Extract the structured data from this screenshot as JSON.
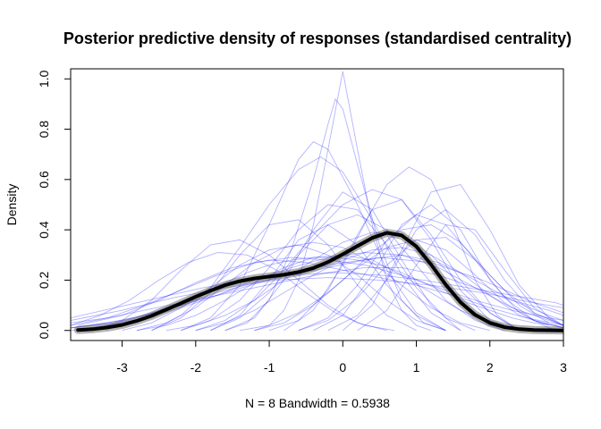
{
  "chart_data": {
    "type": "line",
    "title": "Posterior predictive density of responses (standardised centrality)",
    "xlabel": "N = 8   Bandwidth = 0.5938",
    "ylabel": "Density",
    "xlim": [
      -3.7,
      3.0
    ],
    "ylim": [
      -0.04,
      1.04
    ],
    "x_ticks": [
      -3,
      -2,
      -1,
      0,
      1,
      2,
      3
    ],
    "y_ticks": [
      0.0,
      0.2,
      0.4,
      0.6,
      0.8,
      1.0
    ],
    "x_tick_labels": [
      "-3",
      "-2",
      "-1",
      "0",
      "1",
      "2",
      "3"
    ],
    "y_tick_labels": [
      "0.0",
      "0.2",
      "0.4",
      "0.6",
      "0.8",
      "1.0"
    ],
    "grid": false,
    "colors": {
      "posterior_draws": "#0000FF",
      "observed": "#000000",
      "observed_band": "#555555"
    },
    "series": [
      {
        "role": "observed-density",
        "x": [
          -3.6,
          -3.4,
          -3.2,
          -3.0,
          -2.8,
          -2.6,
          -2.4,
          -2.2,
          -2.0,
          -1.8,
          -1.6,
          -1.4,
          -1.2,
          -1.0,
          -0.8,
          -0.6,
          -0.4,
          -0.2,
          0.0,
          0.2,
          0.4,
          0.6,
          0.8,
          1.0,
          1.2,
          1.4,
          1.6,
          1.8,
          2.0,
          2.2,
          2.4,
          2.6,
          2.8,
          3.0
        ],
        "y": [
          0.002,
          0.005,
          0.012,
          0.022,
          0.038,
          0.058,
          0.083,
          0.108,
          0.134,
          0.158,
          0.18,
          0.196,
          0.207,
          0.214,
          0.222,
          0.232,
          0.248,
          0.272,
          0.303,
          0.336,
          0.368,
          0.388,
          0.378,
          0.334,
          0.262,
          0.182,
          0.112,
          0.062,
          0.03,
          0.013,
          0.005,
          0.002,
          0.001,
          0.0
        ]
      }
    ],
    "posterior_draws": [
      {
        "x": [
          -3.7,
          -3.4,
          -3.1,
          -2.8,
          -2.5,
          -2.2,
          -1.9,
          -1.6,
          -1.3,
          -1.0,
          -0.7,
          -0.4,
          -0.1,
          0.2,
          0.5,
          0.8,
          1.1,
          1.4,
          1.7,
          2.0,
          2.3,
          2.6,
          2.9,
          3.0
        ],
        "y": [
          0.01,
          0.02,
          0.03,
          0.05,
          0.08,
          0.11,
          0.15,
          0.19,
          0.23,
          0.26,
          0.28,
          0.29,
          0.29,
          0.28,
          0.26,
          0.23,
          0.19,
          0.15,
          0.11,
          0.08,
          0.05,
          0.03,
          0.02,
          0.01
        ]
      },
      {
        "x": [
          -1.2,
          -1.0,
          -0.8,
          -0.6,
          -0.4,
          -0.2,
          0.0,
          0.2,
          0.4,
          0.6,
          0.8,
          1.0,
          1.2
        ],
        "y": [
          0.0,
          0.02,
          0.08,
          0.2,
          0.42,
          0.72,
          1.03,
          0.72,
          0.42,
          0.2,
          0.08,
          0.02,
          0.0
        ]
      },
      {
        "x": [
          -1.6,
          -1.3,
          -1.0,
          -0.7,
          -0.4,
          -0.2,
          -0.1,
          0.0,
          0.2,
          0.5,
          0.8,
          1.1,
          1.4
        ],
        "y": [
          0.0,
          0.03,
          0.12,
          0.32,
          0.6,
          0.82,
          0.92,
          0.88,
          0.66,
          0.34,
          0.12,
          0.03,
          0.0
        ]
      },
      {
        "x": [
          -2.2,
          -1.8,
          -1.4,
          -1.0,
          -0.6,
          -0.4,
          -0.2,
          0.2,
          0.6,
          1.0,
          1.4
        ],
        "y": [
          0.0,
          0.05,
          0.18,
          0.42,
          0.68,
          0.75,
          0.72,
          0.5,
          0.24,
          0.07,
          0.0
        ]
      },
      {
        "x": [
          -1.0,
          -0.6,
          -0.2,
          0.2,
          0.6,
          0.9,
          1.2,
          1.5,
          1.8,
          2.1,
          2.4
        ],
        "y": [
          0.0,
          0.04,
          0.16,
          0.38,
          0.58,
          0.65,
          0.6,
          0.42,
          0.2,
          0.06,
          0.0
        ]
      },
      {
        "x": [
          -2.6,
          -2.2,
          -1.8,
          -1.4,
          -1.0,
          -0.6,
          -0.3,
          0.0,
          0.4,
          0.8,
          1.2,
          1.6
        ],
        "y": [
          0.0,
          0.06,
          0.17,
          0.33,
          0.5,
          0.64,
          0.69,
          0.63,
          0.44,
          0.22,
          0.07,
          0.0
        ]
      },
      {
        "x": [
          -3.7,
          -3.2,
          -2.7,
          -2.2,
          -1.7,
          -1.2,
          -0.7,
          -0.2,
          0.3,
          0.8,
          1.3,
          1.8,
          2.3,
          2.8,
          3.0
        ],
        "y": [
          0.02,
          0.05,
          0.1,
          0.16,
          0.22,
          0.27,
          0.29,
          0.28,
          0.26,
          0.22,
          0.17,
          0.12,
          0.08,
          0.05,
          0.04
        ]
      },
      {
        "x": [
          -0.4,
          0.0,
          0.4,
          0.8,
          1.2,
          1.6,
          2.0,
          2.4,
          2.8,
          3.0
        ],
        "y": [
          0.0,
          0.06,
          0.22,
          0.42,
          0.5,
          0.4,
          0.2,
          0.07,
          0.01,
          0.0
        ]
      },
      {
        "x": [
          -2.0,
          -1.6,
          -1.2,
          -0.8,
          -0.4,
          0.0,
          0.4,
          0.8,
          1.2,
          1.6,
          2.0,
          2.4
        ],
        "y": [
          0.0,
          0.04,
          0.12,
          0.24,
          0.38,
          0.5,
          0.56,
          0.52,
          0.38,
          0.2,
          0.07,
          0.0
        ]
      },
      {
        "x": [
          -3.6,
          -3.0,
          -2.5,
          -2.0,
          -1.5,
          -1.0,
          -0.5,
          0.0,
          0.5,
          1.0,
          1.5,
          2.0,
          2.5,
          3.0
        ],
        "y": [
          0.02,
          0.06,
          0.12,
          0.19,
          0.25,
          0.28,
          0.27,
          0.24,
          0.21,
          0.18,
          0.14,
          0.09,
          0.05,
          0.02
        ]
      },
      {
        "x": [
          -1.6,
          -1.2,
          -0.8,
          -0.4,
          0.0,
          0.4,
          0.8,
          1.2,
          1.6
        ],
        "y": [
          0.0,
          0.05,
          0.2,
          0.4,
          0.55,
          0.48,
          0.28,
          0.1,
          0.0
        ]
      },
      {
        "x": [
          -0.6,
          -0.2,
          0.2,
          0.6,
          1.0,
          1.4,
          1.8,
          2.2,
          2.6,
          3.0
        ],
        "y": [
          0.0,
          0.05,
          0.18,
          0.36,
          0.46,
          0.42,
          0.28,
          0.13,
          0.04,
          0.01
        ]
      },
      {
        "x": [
          -3.4,
          -3.0,
          -2.6,
          -2.2,
          -1.8,
          -1.4,
          -1.0,
          -0.6,
          -0.2,
          0.2,
          0.6
        ],
        "y": [
          0.0,
          0.04,
          0.12,
          0.24,
          0.34,
          0.36,
          0.3,
          0.2,
          0.1,
          0.03,
          0.0
        ]
      },
      {
        "x": [
          -3.7,
          -3.2,
          -2.7,
          -2.2,
          -1.7,
          -1.2,
          -0.7,
          -0.2,
          0.3,
          0.8,
          1.3,
          1.8,
          2.3,
          2.8,
          3.0
        ],
        "y": [
          0.01,
          0.03,
          0.06,
          0.1,
          0.15,
          0.19,
          0.22,
          0.25,
          0.28,
          0.3,
          0.27,
          0.2,
          0.12,
          0.06,
          0.04
        ]
      },
      {
        "x": [
          -1.8,
          -1.4,
          -1.0,
          -0.6,
          -0.2,
          0.2,
          0.6,
          1.0,
          1.4,
          1.8,
          2.2
        ],
        "y": [
          0.0,
          0.05,
          0.15,
          0.3,
          0.42,
          0.46,
          0.4,
          0.26,
          0.12,
          0.04,
          0.0
        ]
      },
      {
        "x": [
          0.0,
          0.4,
          0.8,
          1.2,
          1.6,
          2.0,
          2.4,
          2.8,
          3.0
        ],
        "y": [
          0.0,
          0.1,
          0.32,
          0.55,
          0.58,
          0.4,
          0.18,
          0.05,
          0.02
        ]
      },
      {
        "x": [
          -2.8,
          -2.4,
          -2.0,
          -1.6,
          -1.2,
          -0.8,
          -0.4,
          0.0,
          0.4,
          0.8,
          1.2,
          1.6,
          2.0
        ],
        "y": [
          0.0,
          0.03,
          0.09,
          0.18,
          0.27,
          0.33,
          0.35,
          0.33,
          0.27,
          0.18,
          0.09,
          0.03,
          0.0
        ]
      },
      {
        "x": [
          -3.7,
          -3.0,
          -2.3,
          -1.6,
          -0.9,
          -0.2,
          0.5,
          1.2,
          1.9,
          2.6,
          3.0
        ],
        "y": [
          0.04,
          0.08,
          0.13,
          0.17,
          0.2,
          0.21,
          0.2,
          0.18,
          0.15,
          0.11,
          0.09
        ]
      },
      {
        "x": [
          -2.4,
          -2.0,
          -1.6,
          -1.2,
          -0.8,
          -0.4,
          0.0,
          0.4,
          0.8,
          1.2,
          1.6,
          2.0,
          2.4
        ],
        "y": [
          0.0,
          0.02,
          0.06,
          0.12,
          0.2,
          0.28,
          0.35,
          0.39,
          0.38,
          0.3,
          0.18,
          0.07,
          0.0
        ]
      },
      {
        "x": [
          -0.8,
          -0.4,
          0.0,
          0.4,
          0.8,
          1.2,
          1.6,
          2.0,
          2.4
        ],
        "y": [
          0.0,
          0.08,
          0.26,
          0.48,
          0.52,
          0.36,
          0.16,
          0.04,
          0.0
        ]
      },
      {
        "x": [
          -3.0,
          -2.6,
          -2.2,
          -1.8,
          -1.4,
          -1.0,
          -0.6,
          -0.2,
          0.2,
          0.6,
          1.0,
          1.4
        ],
        "y": [
          0.0,
          0.03,
          0.09,
          0.17,
          0.26,
          0.32,
          0.34,
          0.3,
          0.22,
          0.12,
          0.04,
          0.0
        ]
      },
      {
        "x": [
          -1.4,
          -1.0,
          -0.6,
          -0.2,
          0.2,
          0.6,
          1.0,
          1.4,
          1.8,
          2.2,
          2.6,
          3.0
        ],
        "y": [
          0.0,
          0.02,
          0.07,
          0.15,
          0.25,
          0.33,
          0.36,
          0.32,
          0.22,
          0.11,
          0.04,
          0.01
        ]
      },
      {
        "x": [
          -3.7,
          -3.2,
          -2.7,
          -2.2,
          -1.7,
          -1.2,
          -0.7,
          -0.2,
          0.3,
          0.8,
          1.3,
          1.8,
          2.3,
          2.8,
          3.0
        ],
        "y": [
          0.03,
          0.05,
          0.08,
          0.11,
          0.14,
          0.17,
          0.2,
          0.23,
          0.25,
          0.25,
          0.22,
          0.17,
          0.12,
          0.08,
          0.06
        ]
      },
      {
        "x": [
          -2.2,
          -1.8,
          -1.4,
          -1.0,
          -0.6,
          -0.2,
          0.2,
          0.6,
          1.0,
          1.4,
          1.8
        ],
        "y": [
          0.0,
          0.04,
          0.12,
          0.25,
          0.4,
          0.5,
          0.48,
          0.34,
          0.17,
          0.05,
          0.0
        ]
      },
      {
        "x": [
          -0.2,
          0.2,
          0.6,
          1.0,
          1.4,
          1.8,
          2.2,
          2.6,
          3.0
        ],
        "y": [
          0.0,
          0.06,
          0.2,
          0.4,
          0.48,
          0.38,
          0.2,
          0.07,
          0.02
        ]
      },
      {
        "x": [
          -3.7,
          -3.1,
          -2.5,
          -1.9,
          -1.3,
          -0.7,
          -0.1,
          0.5,
          1.1,
          1.7,
          2.3,
          2.9,
          3.0
        ],
        "y": [
          0.05,
          0.09,
          0.13,
          0.17,
          0.2,
          0.22,
          0.23,
          0.22,
          0.2,
          0.17,
          0.14,
          0.11,
          0.1
        ]
      },
      {
        "x": [
          -2.6,
          -2.2,
          -1.8,
          -1.4,
          -1.0,
          -0.6,
          -0.2,
          0.2,
          0.6,
          1.0
        ],
        "y": [
          0.0,
          0.05,
          0.15,
          0.3,
          0.42,
          0.44,
          0.34,
          0.18,
          0.06,
          0.0
        ]
      },
      {
        "x": [
          -1.2,
          -0.8,
          -0.4,
          0.0,
          0.4,
          0.8,
          1.2,
          1.6,
          2.0,
          2.4,
          2.8
        ],
        "y": [
          0.0,
          0.03,
          0.1,
          0.2,
          0.31,
          0.4,
          0.42,
          0.35,
          0.22,
          0.1,
          0.03
        ]
      },
      {
        "x": [
          -3.7,
          -3.3,
          -2.9,
          -2.5,
          -2.1,
          -1.7,
          -1.3,
          -0.9,
          -0.5,
          -0.1,
          0.3,
          0.7
        ],
        "y": [
          0.02,
          0.06,
          0.12,
          0.2,
          0.27,
          0.31,
          0.3,
          0.24,
          0.15,
          0.07,
          0.02,
          0.0
        ]
      },
      {
        "x": [
          -2.0,
          -1.6,
          -1.2,
          -0.8,
          -0.4,
          0.0,
          0.4,
          0.8,
          1.2,
          1.6,
          2.0,
          2.4,
          2.8
        ],
        "y": [
          0.0,
          0.03,
          0.08,
          0.15,
          0.22,
          0.28,
          0.32,
          0.33,
          0.3,
          0.23,
          0.14,
          0.06,
          0.02
        ]
      },
      {
        "x": [
          0.2,
          0.6,
          1.0,
          1.4,
          1.8,
          2.2,
          2.6,
          3.0
        ],
        "y": [
          0.0,
          0.08,
          0.26,
          0.42,
          0.4,
          0.24,
          0.09,
          0.02
        ]
      },
      {
        "x": [
          -3.7,
          -3.0,
          -2.3,
          -1.6,
          -0.9,
          -0.2,
          0.5,
          1.2,
          1.9,
          2.6,
          3.0
        ],
        "y": [
          0.01,
          0.04,
          0.09,
          0.15,
          0.21,
          0.26,
          0.29,
          0.27,
          0.2,
          0.11,
          0.07
        ]
      },
      {
        "x": [
          -1.8,
          -1.4,
          -1.0,
          -0.6,
          -0.2,
          0.2,
          0.6,
          1.0,
          1.4
        ],
        "y": [
          0.0,
          0.06,
          0.2,
          0.36,
          0.42,
          0.34,
          0.18,
          0.06,
          0.0
        ]
      },
      {
        "x": [
          -3.7,
          -3.2,
          -2.7,
          -2.2,
          -1.7,
          -1.2,
          -0.7,
          -0.2,
          0.3,
          0.8,
          1.3,
          1.8,
          2.3,
          2.8,
          3.0
        ],
        "y": [
          0.0,
          0.02,
          0.05,
          0.09,
          0.14,
          0.2,
          0.25,
          0.29,
          0.31,
          0.3,
          0.25,
          0.17,
          0.09,
          0.04,
          0.02
        ]
      },
      {
        "x": [
          -0.6,
          -0.2,
          0.2,
          0.6,
          1.0,
          1.4,
          1.8,
          2.2,
          2.6,
          3.0
        ],
        "y": [
          0.0,
          0.04,
          0.13,
          0.26,
          0.36,
          0.37,
          0.28,
          0.16,
          0.07,
          0.02
        ]
      },
      {
        "x": [
          -2.8,
          -2.4,
          -2.0,
          -1.6,
          -1.2,
          -0.8,
          -0.4,
          0.0,
          0.4,
          0.8,
          1.2,
          1.6,
          2.0,
          2.4
        ],
        "y": [
          0.0,
          0.02,
          0.06,
          0.12,
          0.19,
          0.25,
          0.29,
          0.3,
          0.28,
          0.22,
          0.15,
          0.08,
          0.03,
          0.0
        ]
      }
    ]
  }
}
